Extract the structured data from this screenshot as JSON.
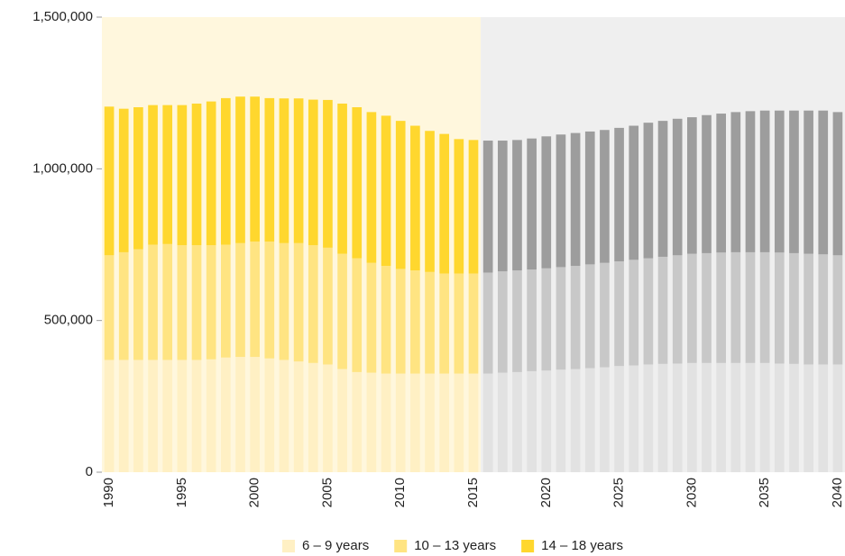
{
  "chart_data": {
    "type": "stacked_bar",
    "categories": [
      "1990",
      null,
      null,
      null,
      null,
      "1995",
      null,
      null,
      null,
      null,
      "2000",
      null,
      null,
      null,
      null,
      "2005",
      null,
      null,
      null,
      null,
      "2010",
      null,
      null,
      null,
      null,
      "2015",
      null,
      null,
      null,
      null,
      "2020",
      null,
      null,
      null,
      null,
      "2025",
      null,
      null,
      null,
      null,
      "2030",
      null,
      null,
      null,
      null,
      "2035",
      null,
      null,
      null,
      null,
      "2040"
    ],
    "series": [
      {
        "name": "6 – 9 years",
        "color": "#fff0c4",
        "projection_color": "#e2e2e2",
        "values": [
          370000,
          370000,
          370000,
          370000,
          370000,
          370000,
          370000,
          372000,
          378000,
          380000,
          380000,
          375000,
          370000,
          365000,
          360000,
          355000,
          340000,
          330000,
          328000,
          325000,
          325000,
          325000,
          325000,
          325000,
          325000,
          325000,
          325000,
          328000,
          330000,
          333000,
          335000,
          338000,
          340000,
          343000,
          346000,
          350000,
          352000,
          355000,
          357000,
          358000,
          360000,
          360000,
          360000,
          360000,
          360000,
          360000,
          358000,
          357000,
          355000,
          355000,
          355000
        ]
      },
      {
        "name": "10 – 13 years",
        "color": "#ffe482",
        "projection_color": "#c8c8c8",
        "values": [
          345000,
          355000,
          365000,
          380000,
          382000,
          378000,
          378000,
          376000,
          372000,
          375000,
          380000,
          385000,
          385000,
          390000,
          388000,
          385000,
          380000,
          375000,
          362000,
          355000,
          345000,
          340000,
          335000,
          330000,
          330000,
          330000,
          333000,
          334000,
          335000,
          335000,
          337000,
          338000,
          340000,
          342000,
          344000,
          345000,
          348000,
          350000,
          353000,
          357000,
          360000,
          362000,
          364000,
          365000,
          365000,
          365000,
          366000,
          365000,
          365000,
          363000,
          360000
        ]
      },
      {
        "name": "14 – 18 years",
        "color": "#ffd72e",
        "projection_color": "#9d9d9d",
        "values": [
          490000,
          473000,
          468000,
          460000,
          458000,
          462000,
          467000,
          474000,
          483000,
          483000,
          478000,
          473000,
          477000,
          477000,
          480000,
          487000,
          495000,
          498000,
          497000,
          495000,
          488000,
          477000,
          465000,
          460000,
          443000,
          440000,
          435000,
          431000,
          430000,
          432000,
          435000,
          437000,
          438000,
          438000,
          438000,
          440000,
          442000,
          447000,
          448000,
          450000,
          450000,
          455000,
          458000,
          462000,
          465000,
          467000,
          468000,
          470000,
          472000,
          474000,
          472000
        ]
      }
    ],
    "projection_start": 26,
    "background": "#fff7dd",
    "projection_background": "#efefef",
    "ylim": [
      0,
      1500000
    ],
    "yticks": [
      0,
      {
        "value": 500000,
        "label": "500,000"
      },
      {
        "value": 1000000,
        "label": "1,000,000"
      },
      {
        "value": 1500000,
        "label": "1,500,000"
      }
    ],
    "legend": "bottom"
  }
}
